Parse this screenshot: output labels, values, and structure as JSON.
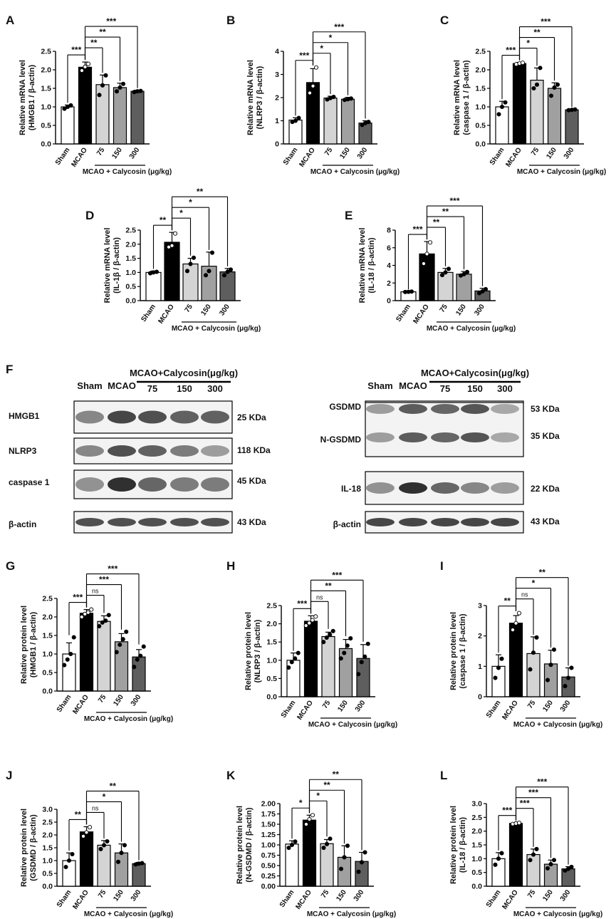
{
  "colors": {
    "bars": [
      "#ffffff",
      "#000000",
      "#d4d4d4",
      "#a0a0a0",
      "#5e5e5e"
    ],
    "outline": "#000000"
  },
  "group_label": "MCAO + Calycosin (μg/kg)",
  "chart_data": [
    {
      "panel": "A",
      "type": "bar",
      "categories": [
        "Sham",
        "MCAO",
        "75",
        "150",
        "300"
      ],
      "values": [
        1.0,
        2.07,
        1.6,
        1.52,
        1.42
      ],
      "errors": [
        0.05,
        0.14,
        0.26,
        0.12,
        0.03
      ],
      "points": [
        [
          0.95,
          1.0,
          1.04
        ],
        [
          1.98,
          2.08,
          2.16
        ],
        [
          1.32,
          1.58,
          1.85
        ],
        [
          1.42,
          1.52,
          1.62
        ],
        [
          1.4,
          1.42,
          1.43
        ]
      ],
      "ylabel": [
        "Relative mRNA level",
        "(HMGB1 / β-actin)"
      ],
      "ylim": [
        0,
        2.5
      ],
      "yticks": [
        "0.0",
        "0.5",
        "1.0",
        "1.5",
        "2.0",
        "2.5"
      ],
      "ystep": 0.5,
      "sig": [
        {
          "from": 0,
          "to": 1,
          "label": "***"
        },
        {
          "from": 1,
          "to": 2,
          "label": "**"
        },
        {
          "from": 1,
          "to": 3,
          "label": "**"
        },
        {
          "from": 1,
          "to": 4,
          "label": "***"
        }
      ],
      "group_label": "MCAO + Calycosin (μg/kg)"
    },
    {
      "panel": "B",
      "type": "bar",
      "categories": [
        "Sham",
        "MCAO",
        "75",
        "150",
        "300"
      ],
      "values": [
        1.03,
        2.65,
        1.98,
        1.93,
        0.9
      ],
      "errors": [
        0.1,
        0.6,
        0.08,
        0.08,
        0.1
      ],
      "points": [
        [
          0.95,
          1.0,
          1.12
        ],
        [
          2.2,
          2.5,
          3.3
        ],
        [
          1.92,
          1.98,
          2.03
        ],
        [
          1.9,
          1.93,
          1.96
        ],
        [
          0.82,
          0.9,
          0.95
        ]
      ],
      "ylabel": [
        "Relative mRNA level",
        "(NLRP3 / β-actin)"
      ],
      "ylim": [
        0,
        4
      ],
      "yticks": [
        "0",
        "1",
        "2",
        "3",
        "4"
      ],
      "ystep": 1,
      "sig": [
        {
          "from": 0,
          "to": 1,
          "label": "***"
        },
        {
          "from": 1,
          "to": 2,
          "label": "*"
        },
        {
          "from": 1,
          "to": 3,
          "label": "*"
        },
        {
          "from": 1,
          "to": 4,
          "label": "***"
        }
      ],
      "group_label": "MCAO + Calycosin (μg/kg)"
    },
    {
      "panel": "C",
      "type": "bar",
      "categories": [
        "Sham",
        "MCAO",
        "75",
        "150",
        "300"
      ],
      "values": [
        1.0,
        2.17,
        1.72,
        1.5,
        0.92
      ],
      "errors": [
        0.15,
        0.03,
        0.33,
        0.15,
        0.02
      ],
      "points": [
        [
          0.8,
          1.0,
          1.12
        ],
        [
          2.15,
          2.17,
          2.19
        ],
        [
          1.5,
          1.6,
          2.05
        ],
        [
          1.3,
          1.52,
          1.6
        ],
        [
          0.91,
          0.92,
          0.93
        ]
      ],
      "ylabel": [
        "Relative mRNA level",
        "(caspase 1 / β-actin)"
      ],
      "ylim": [
        0,
        2.5
      ],
      "yticks": [
        "0.0",
        "0.5",
        "1.0",
        "1.5",
        "2.0",
        "2.5"
      ],
      "ystep": 0.5,
      "sig": [
        {
          "from": 0,
          "to": 1,
          "label": "***"
        },
        {
          "from": 1,
          "to": 2,
          "label": "*"
        },
        {
          "from": 1,
          "to": 3,
          "label": "**"
        },
        {
          "from": 1,
          "to": 4,
          "label": "***"
        }
      ],
      "group_label": "MCAO + Calycosin (μg/kg)"
    },
    {
      "panel": "D",
      "type": "bar",
      "categories": [
        "Sham",
        "MCAO",
        "75",
        "150",
        "300"
      ],
      "values": [
        1.0,
        2.07,
        1.3,
        1.22,
        1.02
      ],
      "errors": [
        0.05,
        0.35,
        0.2,
        0.5,
        0.12
      ],
      "points": [
        [
          0.97,
          1.0,
          1.02
        ],
        [
          1.9,
          1.95,
          2.38
        ],
        [
          1.05,
          1.3,
          1.52
        ],
        [
          0.9,
          1.05,
          1.7
        ],
        [
          0.9,
          1.02,
          1.1
        ]
      ],
      "ylabel": [
        "Relative mRNA level",
        "(IL-1β / β-actin)"
      ],
      "ylim": [
        0,
        2.5
      ],
      "yticks": [
        "0.0",
        "0.5",
        "1.0",
        "1.5",
        "2.0",
        "2.5"
      ],
      "ystep": 0.5,
      "sig": [
        {
          "from": 0,
          "to": 1,
          "label": "**"
        },
        {
          "from": 1,
          "to": 2,
          "label": "*"
        },
        {
          "from": 1,
          "to": 3,
          "label": "*"
        },
        {
          "from": 1,
          "to": 4,
          "label": "**"
        }
      ],
      "group_label": "MCAO + Calycosin (μg/kg)"
    },
    {
      "panel": "E",
      "type": "bar",
      "categories": [
        "Sham",
        "MCAO",
        "75",
        "150",
        "300"
      ],
      "values": [
        1.0,
        5.3,
        3.2,
        3.0,
        1.1
      ],
      "errors": [
        0.05,
        1.4,
        0.45,
        0.3,
        0.3
      ],
      "points": [
        [
          0.98,
          1.0,
          1.03
        ],
        [
          4.2,
          5.3,
          6.6
        ],
        [
          2.9,
          3.2,
          3.6
        ],
        [
          2.85,
          3.0,
          3.25
        ],
        [
          0.85,
          1.05,
          1.3
        ]
      ],
      "ylabel": [
        "Relative mRNA level",
        "(IL-18 / β-actin)"
      ],
      "ylim": [
        0,
        8
      ],
      "yticks": [
        "0",
        "2",
        "4",
        "6",
        "8"
      ],
      "ystep": 2,
      "sig": [
        {
          "from": 0,
          "to": 1,
          "label": "***"
        },
        {
          "from": 1,
          "to": 2,
          "label": "**"
        },
        {
          "from": 1,
          "to": 3,
          "label": "**"
        },
        {
          "from": 1,
          "to": 4,
          "label": "***"
        }
      ],
      "group_label": "MCAO + Calycosin (μg/kg)"
    },
    {
      "panel": "G",
      "type": "bar",
      "categories": [
        "Sham",
        "MCAO",
        "75",
        "150",
        "300"
      ],
      "values": [
        1.0,
        2.1,
        1.88,
        1.33,
        0.92
      ],
      "errors": [
        0.3,
        0.1,
        0.15,
        0.22,
        0.2
      ],
      "points": [
        [
          0.7,
          0.85,
          1.0,
          1.45
        ],
        [
          2.0,
          2.08,
          2.12,
          2.2
        ],
        [
          1.75,
          1.85,
          1.9,
          2.05
        ],
        [
          1.05,
          1.25,
          1.4,
          1.6
        ],
        [
          0.65,
          0.85,
          0.95,
          1.2
        ]
      ],
      "ylabel": [
        "Relative protein level",
        "(HMGB1 / β-actin)"
      ],
      "ylim": [
        0,
        2.5
      ],
      "yticks": [
        "0.0",
        "0.5",
        "1.0",
        "1.5",
        "2.0",
        "2.5"
      ],
      "ystep": 0.5,
      "sig": [
        {
          "from": 0,
          "to": 1,
          "label": "***"
        },
        {
          "from": 1,
          "to": 2,
          "label": "ns"
        },
        {
          "from": 1,
          "to": 3,
          "label": "***"
        },
        {
          "from": 1,
          "to": 4,
          "label": "***"
        }
      ],
      "group_label": "MCAO + Calycosin (μg/kg)"
    },
    {
      "panel": "H",
      "type": "bar",
      "categories": [
        "Sham",
        "MCAO",
        "75",
        "150",
        "300"
      ],
      "values": [
        1.0,
        2.07,
        1.65,
        1.32,
        1.05
      ],
      "errors": [
        0.2,
        0.15,
        0.12,
        0.25,
        0.38
      ],
      "points": [
        [
          0.8,
          0.95,
          1.05,
          1.2
        ],
        [
          1.95,
          2.02,
          2.1,
          2.2
        ],
        [
          1.5,
          1.62,
          1.7,
          1.8
        ],
        [
          1.05,
          1.2,
          1.4,
          1.6
        ],
        [
          0.62,
          0.95,
          1.1,
          1.45
        ]
      ],
      "ylabel": [
        "Relative protein level",
        "(NLRP3 / β-actin)"
      ],
      "ylim": [
        0,
        2.5
      ],
      "yticks": [
        "0.0",
        "0.5",
        "1.0",
        "1.5",
        "2.0",
        "2.5"
      ],
      "ystep": 0.5,
      "sig": [
        {
          "from": 0,
          "to": 1,
          "label": "***"
        },
        {
          "from": 1,
          "to": 2,
          "label": "ns"
        },
        {
          "from": 1,
          "to": 3,
          "label": "**"
        },
        {
          "from": 1,
          "to": 4,
          "label": "***"
        }
      ],
      "group_label": "MCAO + Calycosin (μg/kg)"
    },
    {
      "panel": "I",
      "type": "bar",
      "categories": [
        "Sham",
        "MCAO",
        "75",
        "150",
        "300"
      ],
      "values": [
        1.0,
        2.42,
        1.42,
        1.08,
        0.65
      ],
      "errors": [
        0.38,
        0.25,
        0.55,
        0.45,
        0.3
      ],
      "points": [
        [
          0.62,
          0.95,
          1.25
        ],
        [
          2.2,
          2.42,
          2.75
        ],
        [
          0.9,
          1.45,
          1.95
        ],
        [
          0.55,
          1.05,
          1.55
        ],
        [
          0.35,
          0.62,
          0.95
        ]
      ],
      "ylabel": [
        "Relative protein level",
        "(caspase 1 / β-actin)"
      ],
      "ylim": [
        0,
        3
      ],
      "yticks": [
        "0",
        "1",
        "2",
        "3"
      ],
      "ystep": 1,
      "sig": [
        {
          "from": 0,
          "to": 1,
          "label": "**"
        },
        {
          "from": 1,
          "to": 2,
          "label": "ns"
        },
        {
          "from": 1,
          "to": 3,
          "label": "*"
        },
        {
          "from": 1,
          "to": 4,
          "label": "**"
        }
      ],
      "group_label": "MCAO + Calycosin (μg/kg)"
    },
    {
      "panel": "J",
      "type": "bar",
      "categories": [
        "Sham",
        "MCAO",
        "75",
        "150",
        "300"
      ],
      "values": [
        1.0,
        2.12,
        1.6,
        1.3,
        0.88
      ],
      "errors": [
        0.3,
        0.2,
        0.18,
        0.35,
        0.05
      ],
      "points": [
        [
          0.75,
          1.0,
          1.25
        ],
        [
          1.95,
          2.1,
          2.3
        ],
        [
          1.45,
          1.6,
          1.75
        ],
        [
          0.95,
          1.3,
          1.6
        ],
        [
          0.85,
          0.88,
          0.9
        ]
      ],
      "ylabel": [
        "Relative protein level",
        "(GSDMD / β-actin)"
      ],
      "ylim": [
        0,
        3.0
      ],
      "yticks": [
        "0.0",
        "0.5",
        "1.0",
        "1.5",
        "2.0",
        "2.5",
        "3.0"
      ],
      "ystep": 0.5,
      "sig": [
        {
          "from": 0,
          "to": 1,
          "label": "**"
        },
        {
          "from": 1,
          "to": 2,
          "label": "ns"
        },
        {
          "from": 1,
          "to": 3,
          "label": "*"
        },
        {
          "from": 1,
          "to": 4,
          "label": "**"
        }
      ],
      "group_label": "MCAO + Calycosin (μg/kg)"
    },
    {
      "panel": "K",
      "type": "bar",
      "categories": [
        "Sham",
        "MCAO",
        "75",
        "150",
        "300"
      ],
      "values": [
        1.02,
        1.6,
        1.03,
        0.7,
        0.6
      ],
      "errors": [
        0.08,
        0.12,
        0.1,
        0.28,
        0.22
      ],
      "points": [
        [
          0.93,
          1.0,
          1.08
        ],
        [
          1.5,
          1.62,
          1.72
        ],
        [
          0.93,
          1.02,
          1.15
        ],
        [
          0.42,
          0.7,
          0.98
        ],
        [
          0.35,
          0.58,
          0.82
        ]
      ],
      "ylabel": [
        "Relative protein level",
        "(N-GSDMD / β-actin)"
      ],
      "ylim": [
        0,
        2.0
      ],
      "yticks": [
        "0.00",
        "0.25",
        "0.50",
        "0.75",
        "1.00",
        "1.25",
        "1.50",
        "1.75",
        "2.00"
      ],
      "ystep": 0.25,
      "sig": [
        {
          "from": 0,
          "to": 1,
          "label": "*"
        },
        {
          "from": 1,
          "to": 2,
          "label": "*"
        },
        {
          "from": 1,
          "to": 3,
          "label": "**"
        },
        {
          "from": 1,
          "to": 4,
          "label": "**"
        }
      ],
      "group_label": "MCAO + Calycosin (μg/kg)"
    },
    {
      "panel": "L",
      "type": "bar",
      "categories": [
        "Sham",
        "MCAO",
        "75",
        "150",
        "300"
      ],
      "values": [
        1.0,
        2.28,
        1.15,
        0.8,
        0.63
      ],
      "errors": [
        0.22,
        0.03,
        0.2,
        0.15,
        0.08
      ],
      "points": [
        [
          0.78,
          1.0,
          1.2
        ],
        [
          2.26,
          2.28,
          2.3
        ],
        [
          0.95,
          1.15,
          1.35
        ],
        [
          0.65,
          0.8,
          0.95
        ],
        [
          0.57,
          0.63,
          0.7
        ]
      ],
      "ylabel": [
        "Relative protein level",
        "(IL-18 / β-actin)"
      ],
      "ylim": [
        0,
        3.0
      ],
      "yticks": [
        "0.0",
        "0.5",
        "1.0",
        "1.5",
        "2.0",
        "2.5",
        "3.0"
      ],
      "ystep": 0.5,
      "sig": [
        {
          "from": 0,
          "to": 1,
          "label": "***"
        },
        {
          "from": 1,
          "to": 2,
          "label": "***"
        },
        {
          "from": 1,
          "to": 3,
          "label": "***"
        },
        {
          "from": 1,
          "to": 4,
          "label": "***"
        }
      ],
      "group_label": "MCAO + Calycosin (μg/kg)"
    }
  ],
  "western": {
    "panel": "F",
    "left": {
      "header_groups": [
        "Sham",
        "MCAO"
      ],
      "header_treat": "MCAO+Calycosin(μg/kg)",
      "header_doses": [
        "75",
        "150",
        "300"
      ],
      "rows": [
        {
          "label": "HMGB1",
          "kda": "25 KDa",
          "intensity": [
            0.55,
            0.85,
            0.8,
            0.72,
            0.72
          ]
        },
        {
          "label": "NLRP3",
          "kda": "118 KDa",
          "intensity": [
            0.55,
            0.8,
            0.72,
            0.6,
            0.45
          ]
        },
        {
          "label": "caspase 1",
          "kda": "45 KDa",
          "intensity": [
            0.5,
            0.95,
            0.7,
            0.6,
            0.6
          ]
        },
        {
          "label": "β-actin",
          "kda": "43 KDa",
          "intensity": [
            0.8,
            0.8,
            0.8,
            0.8,
            0.8
          ]
        }
      ]
    },
    "right": {
      "header_groups": [
        "Sham",
        "MCAO"
      ],
      "header_treat": "MCAO+Calycosin(μg/kg)",
      "header_doses": [
        "75",
        "150",
        "300"
      ],
      "rows": [
        {
          "label": "GSDMD",
          "kda": "53 KDa",
          "intensity": [
            0.45,
            0.75,
            0.7,
            0.78,
            0.4
          ]
        },
        {
          "label": "N-GSDMD",
          "kda": "35 KDa",
          "intensity": [
            0.1,
            0.9,
            0.75,
            0.6,
            0.2
          ]
        },
        {
          "label": "IL-18",
          "kda": "22 KDa",
          "intensity": [
            0.5,
            0.95,
            0.7,
            0.55,
            0.45
          ]
        },
        {
          "label": "β-actin",
          "kda": "43 KDa",
          "intensity": [
            0.85,
            0.85,
            0.85,
            0.85,
            0.85
          ]
        }
      ]
    }
  }
}
